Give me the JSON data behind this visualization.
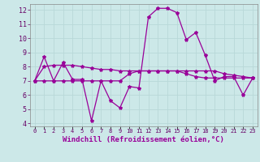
{
  "background_color": "#cce8e8",
  "grid_color": "#aacccc",
  "line_color": "#990099",
  "x_values": [
    0,
    1,
    2,
    3,
    4,
    5,
    6,
    7,
    8,
    9,
    10,
    11,
    12,
    13,
    14,
    15,
    16,
    17,
    18,
    19,
    20,
    21,
    22,
    23
  ],
  "line1": [
    7.0,
    8.7,
    7.0,
    8.3,
    7.1,
    7.1,
    4.2,
    7.0,
    5.6,
    5.1,
    6.6,
    6.5,
    11.5,
    12.1,
    12.1,
    11.8,
    9.9,
    10.4,
    8.8,
    7.0,
    7.3,
    7.3,
    6.0,
    7.2
  ],
  "line2": [
    7.0,
    7.0,
    7.0,
    7.0,
    7.0,
    7.0,
    7.0,
    7.0,
    7.0,
    7.0,
    7.5,
    7.7,
    7.7,
    7.7,
    7.7,
    7.7,
    7.5,
    7.3,
    7.2,
    7.2,
    7.2,
    7.2,
    7.2,
    7.2
  ],
  "line3": [
    7.0,
    8.0,
    8.1,
    8.1,
    8.1,
    8.0,
    7.9,
    7.8,
    7.8,
    7.7,
    7.7,
    7.7,
    7.7,
    7.7,
    7.7,
    7.7,
    7.7,
    7.7,
    7.7,
    7.7,
    7.5,
    7.4,
    7.3,
    7.2
  ],
  "ylim": [
    3.8,
    12.4
  ],
  "yticks": [
    4,
    5,
    6,
    7,
    8,
    9,
    10,
    11,
    12
  ],
  "xlim": [
    -0.5,
    23.5
  ],
  "xlabel": "Windchill (Refroidissement éolien,°C)"
}
